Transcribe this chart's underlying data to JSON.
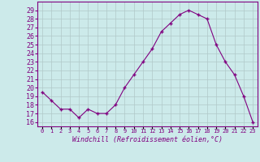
{
  "x": [
    0,
    1,
    2,
    3,
    4,
    5,
    6,
    7,
    8,
    9,
    10,
    11,
    12,
    13,
    14,
    15,
    16,
    17,
    18,
    19,
    20,
    21,
    22,
    23
  ],
  "y": [
    19.5,
    18.5,
    17.5,
    17.5,
    16.5,
    17.5,
    17.0,
    17.0,
    18.0,
    20.0,
    21.5,
    23.0,
    24.5,
    26.5,
    27.5,
    28.5,
    29.0,
    28.5,
    28.0,
    25.0,
    23.0,
    21.5,
    19.0,
    16.0
  ],
  "line_color": "#800080",
  "marker": "+",
  "xlabel": "Windchill (Refroidissement éolien,°C)",
  "ylim": [
    15.5,
    30.0
  ],
  "xlim": [
    -0.5,
    23.5
  ],
  "yticks": [
    16,
    17,
    18,
    19,
    20,
    21,
    22,
    23,
    24,
    25,
    26,
    27,
    28,
    29
  ],
  "xtick_labels": [
    "0",
    "1",
    "2",
    "3",
    "4",
    "5",
    "6",
    "7",
    "8",
    "9",
    "10",
    "11",
    "12",
    "13",
    "14",
    "15",
    "16",
    "17",
    "18",
    "19",
    "20",
    "21",
    "22",
    "23"
  ],
  "bg_color": "#cceaea",
  "grid_color": "#b0c8c8",
  "font_color": "#800080"
}
